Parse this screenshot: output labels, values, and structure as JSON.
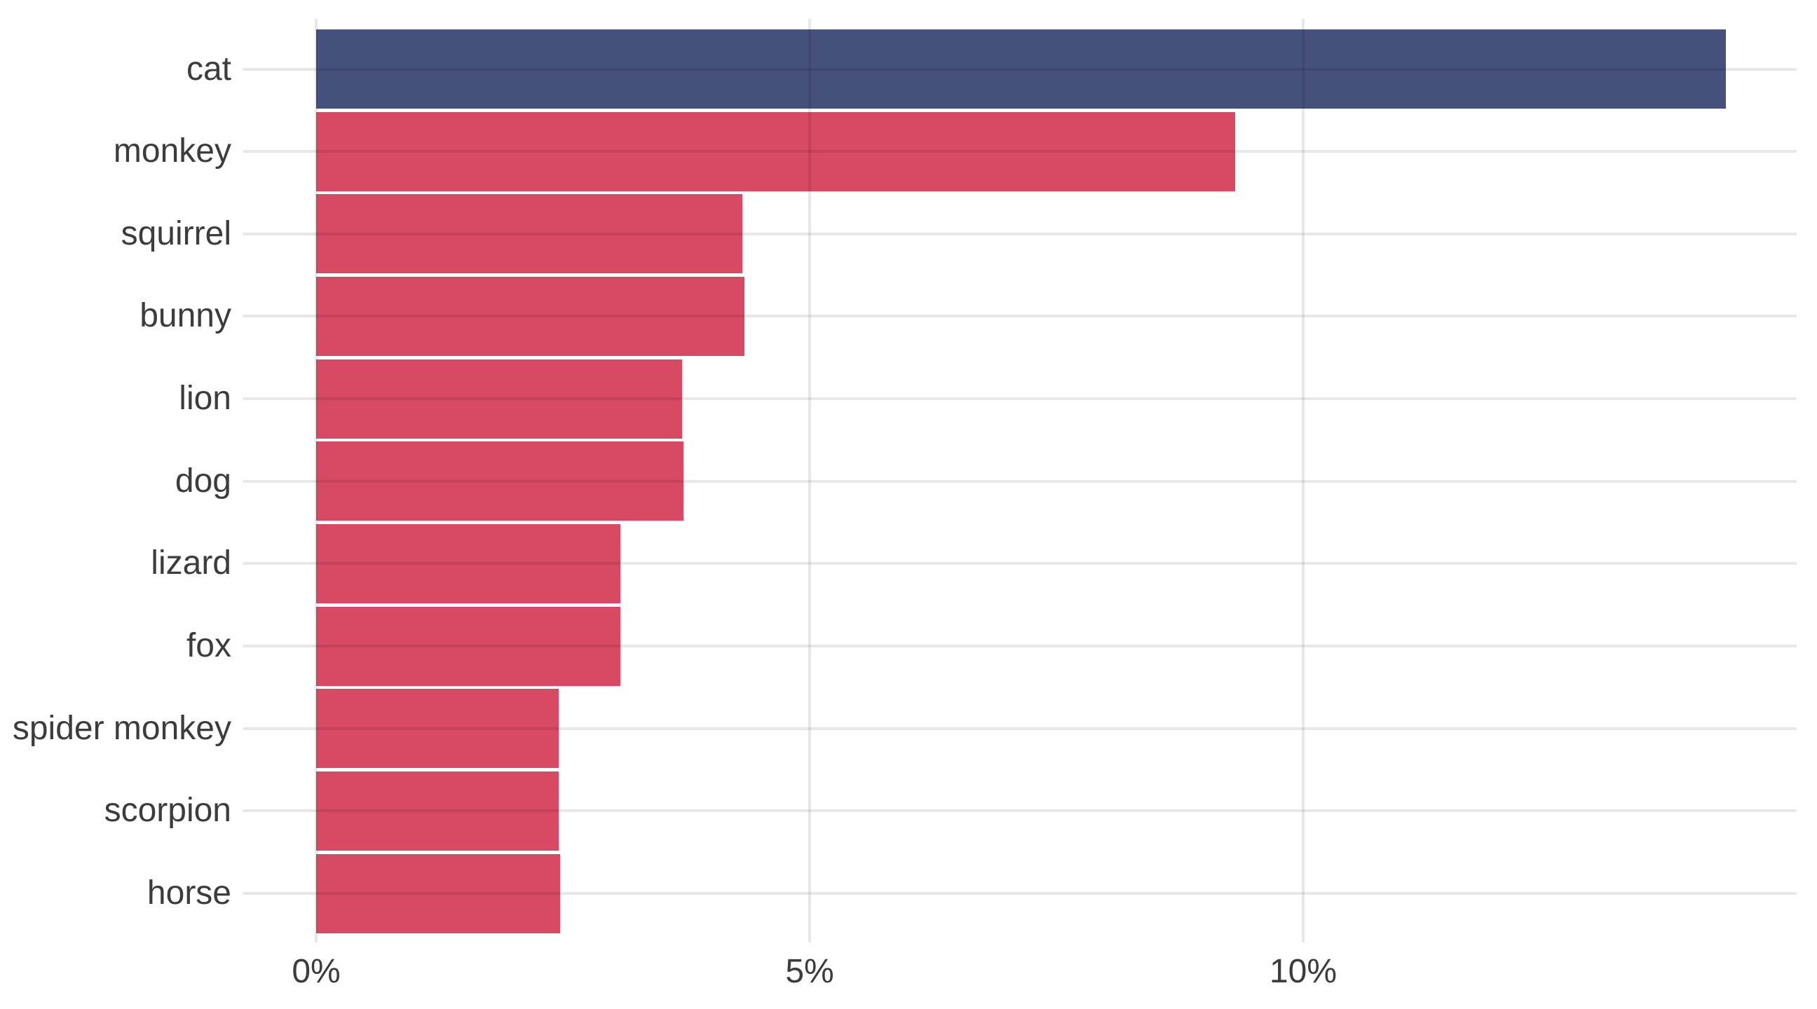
{
  "chart_data": {
    "type": "bar",
    "orientation": "horizontal",
    "title": "",
    "xlabel": "",
    "ylabel": "",
    "categories": [
      "cat",
      "monkey",
      "squirrel",
      "bunny",
      "lion",
      "dog",
      "lizard",
      "fox",
      "spider monkey",
      "scorpion",
      "horse"
    ],
    "values": [
      14.28,
      9.31,
      4.32,
      4.34,
      3.71,
      3.72,
      3.08,
      3.08,
      2.46,
      2.46,
      2.47
    ],
    "unit": "%",
    "xlim": [
      0,
      15
    ],
    "x_ticks": [
      {
        "value": 0,
        "label": "0%"
      },
      {
        "value": 5,
        "label": "5%"
      },
      {
        "value": 10,
        "label": "10%"
      }
    ],
    "grid": true,
    "legend": false,
    "highlight_category": "cat",
    "colors": {
      "highlight_bar": "#46507c",
      "bar": "#d84a64",
      "grid_overlay": "rgba(0,0,0,0.09)",
      "axis_text": "#3c3c3c",
      "background": "#ffffff"
    }
  }
}
